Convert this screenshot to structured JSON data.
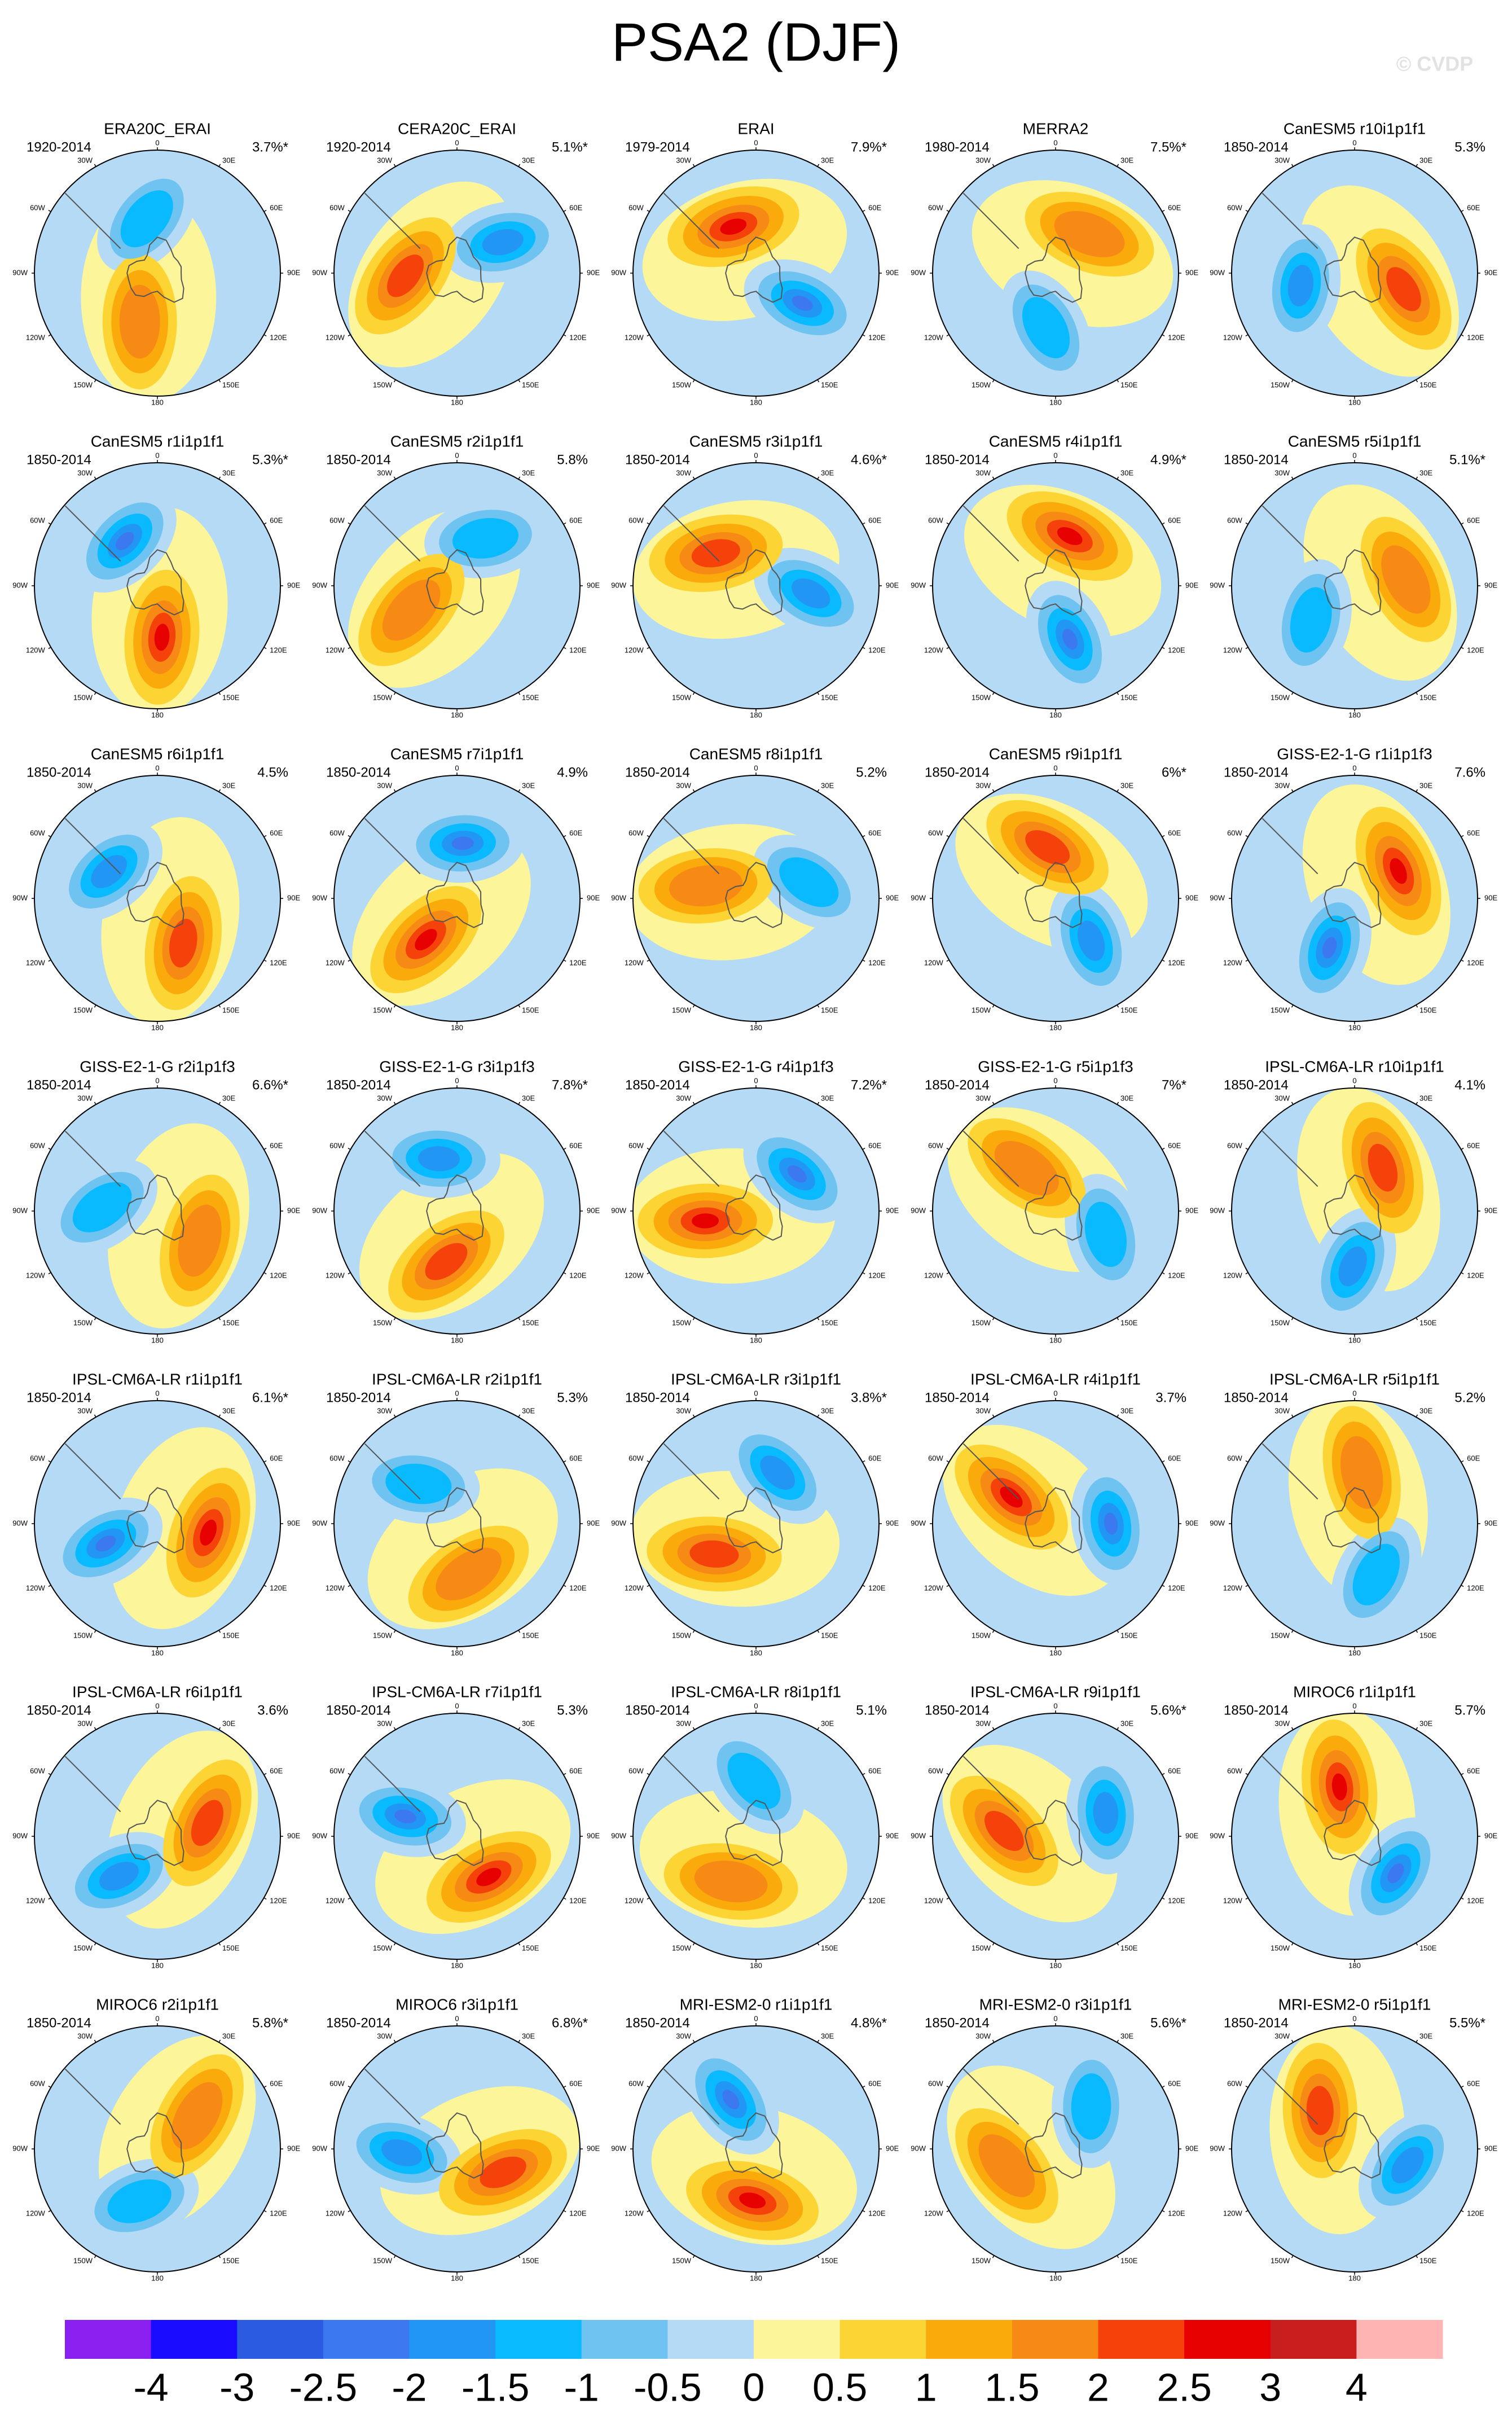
{
  "title": "PSA2 (DJF)",
  "watermark": "© CVDP",
  "lon_labels": [
    "0",
    "30E",
    "60E",
    "90E",
    "120E",
    "150E",
    "180",
    "150W",
    "120W",
    "90W",
    "60W",
    "30W"
  ],
  "panels": [
    {
      "title": "ERA20C_ERAI",
      "period": "1920-2014",
      "variance": "3.7%*"
    },
    {
      "title": "CERA20C_ERAI",
      "period": "1920-2014",
      "variance": "5.1%*"
    },
    {
      "title": "ERAI",
      "period": "1979-2014",
      "variance": "7.9%*"
    },
    {
      "title": "MERRA2",
      "period": "1980-2014",
      "variance": "7.5%*"
    },
    {
      "title": "CanESM5 r10i1p1f1",
      "period": "1850-2014",
      "variance": "5.3%"
    },
    {
      "title": "CanESM5 r1i1p1f1",
      "period": "1850-2014",
      "variance": "5.3%*"
    },
    {
      "title": "CanESM5 r2i1p1f1",
      "period": "1850-2014",
      "variance": "5.8%"
    },
    {
      "title": "CanESM5 r3i1p1f1",
      "period": "1850-2014",
      "variance": "4.6%*"
    },
    {
      "title": "CanESM5 r4i1p1f1",
      "period": "1850-2014",
      "variance": "4.9%*"
    },
    {
      "title": "CanESM5 r5i1p1f1",
      "period": "1850-2014",
      "variance": "5.1%*"
    },
    {
      "title": "CanESM5 r6i1p1f1",
      "period": "1850-2014",
      "variance": "4.5%"
    },
    {
      "title": "CanESM5 r7i1p1f1",
      "period": "1850-2014",
      "variance": "4.9%"
    },
    {
      "title": "CanESM5 r8i1p1f1",
      "period": "1850-2014",
      "variance": "5.2%"
    },
    {
      "title": "CanESM5 r9i1p1f1",
      "period": "1850-2014",
      "variance": "6%*"
    },
    {
      "title": "GISS-E2-1-G r1i1p1f3",
      "period": "1850-2014",
      "variance": "7.6%"
    },
    {
      "title": "GISS-E2-1-G r2i1p1f3",
      "period": "1850-2014",
      "variance": "6.6%*"
    },
    {
      "title": "GISS-E2-1-G r3i1p1f3",
      "period": "1850-2014",
      "variance": "7.8%*"
    },
    {
      "title": "GISS-E2-1-G r4i1p1f3",
      "period": "1850-2014",
      "variance": "7.2%*"
    },
    {
      "title": "GISS-E2-1-G r5i1p1f3",
      "period": "1850-2014",
      "variance": "7%*"
    },
    {
      "title": "IPSL-CM6A-LR r10i1p1f1",
      "period": "1850-2014",
      "variance": "4.1%"
    },
    {
      "title": "IPSL-CM6A-LR r1i1p1f1",
      "period": "1850-2014",
      "variance": "6.1%*"
    },
    {
      "title": "IPSL-CM6A-LR r2i1p1f1",
      "period": "1850-2014",
      "variance": "5.3%"
    },
    {
      "title": "IPSL-CM6A-LR r3i1p1f1",
      "period": "1850-2014",
      "variance": "3.8%*"
    },
    {
      "title": "IPSL-CM6A-LR r4i1p1f1",
      "period": "1850-2014",
      "variance": "3.7%"
    },
    {
      "title": "IPSL-CM6A-LR r5i1p1f1",
      "period": "1850-2014",
      "variance": "5.2%"
    },
    {
      "title": "IPSL-CM6A-LR r6i1p1f1",
      "period": "1850-2014",
      "variance": "3.6%"
    },
    {
      "title": "IPSL-CM6A-LR r7i1p1f1",
      "period": "1850-2014",
      "variance": "5.3%"
    },
    {
      "title": "IPSL-CM6A-LR r8i1p1f1",
      "period": "1850-2014",
      "variance": "5.1%"
    },
    {
      "title": "IPSL-CM6A-LR r9i1p1f1",
      "period": "1850-2014",
      "variance": "5.6%*"
    },
    {
      "title": "MIROC6 r1i1p1f1",
      "period": "1850-2014",
      "variance": "5.7%"
    },
    {
      "title": "MIROC6 r2i1p1f1",
      "period": "1850-2014",
      "variance": "5.8%*"
    },
    {
      "title": "MIROC6 r3i1p1f1",
      "period": "1850-2014",
      "variance": "6.8%*"
    },
    {
      "title": "MRI-ESM2-0 r1i1p1f1",
      "period": "1850-2014",
      "variance": "4.8%*"
    },
    {
      "title": "MRI-ESM2-0 r3i1p1f1",
      "period": "1850-2014",
      "variance": "5.6%*"
    },
    {
      "title": "MRI-ESM2-0 r5i1p1f1",
      "period": "1850-2014",
      "variance": "5.5%*"
    }
  ],
  "colorbar": {
    "colors": [
      "#8a1ff0",
      "#1a0dff",
      "#2a5be0",
      "#3c78f0",
      "#2296f5",
      "#0abaff",
      "#6ec3f0",
      "#b4daf5",
      "#fcf59a",
      "#fcd535",
      "#fbaa0c",
      "#f78a14",
      "#f5410a",
      "#e60000",
      "#c81e1e",
      "#ffb4b4"
    ],
    "ticks": [
      -4,
      -3,
      -2.5,
      -2,
      -1.5,
      -1,
      -0.5,
      0,
      0.5,
      1,
      1.5,
      2,
      2.5,
      3,
      4
    ]
  }
}
